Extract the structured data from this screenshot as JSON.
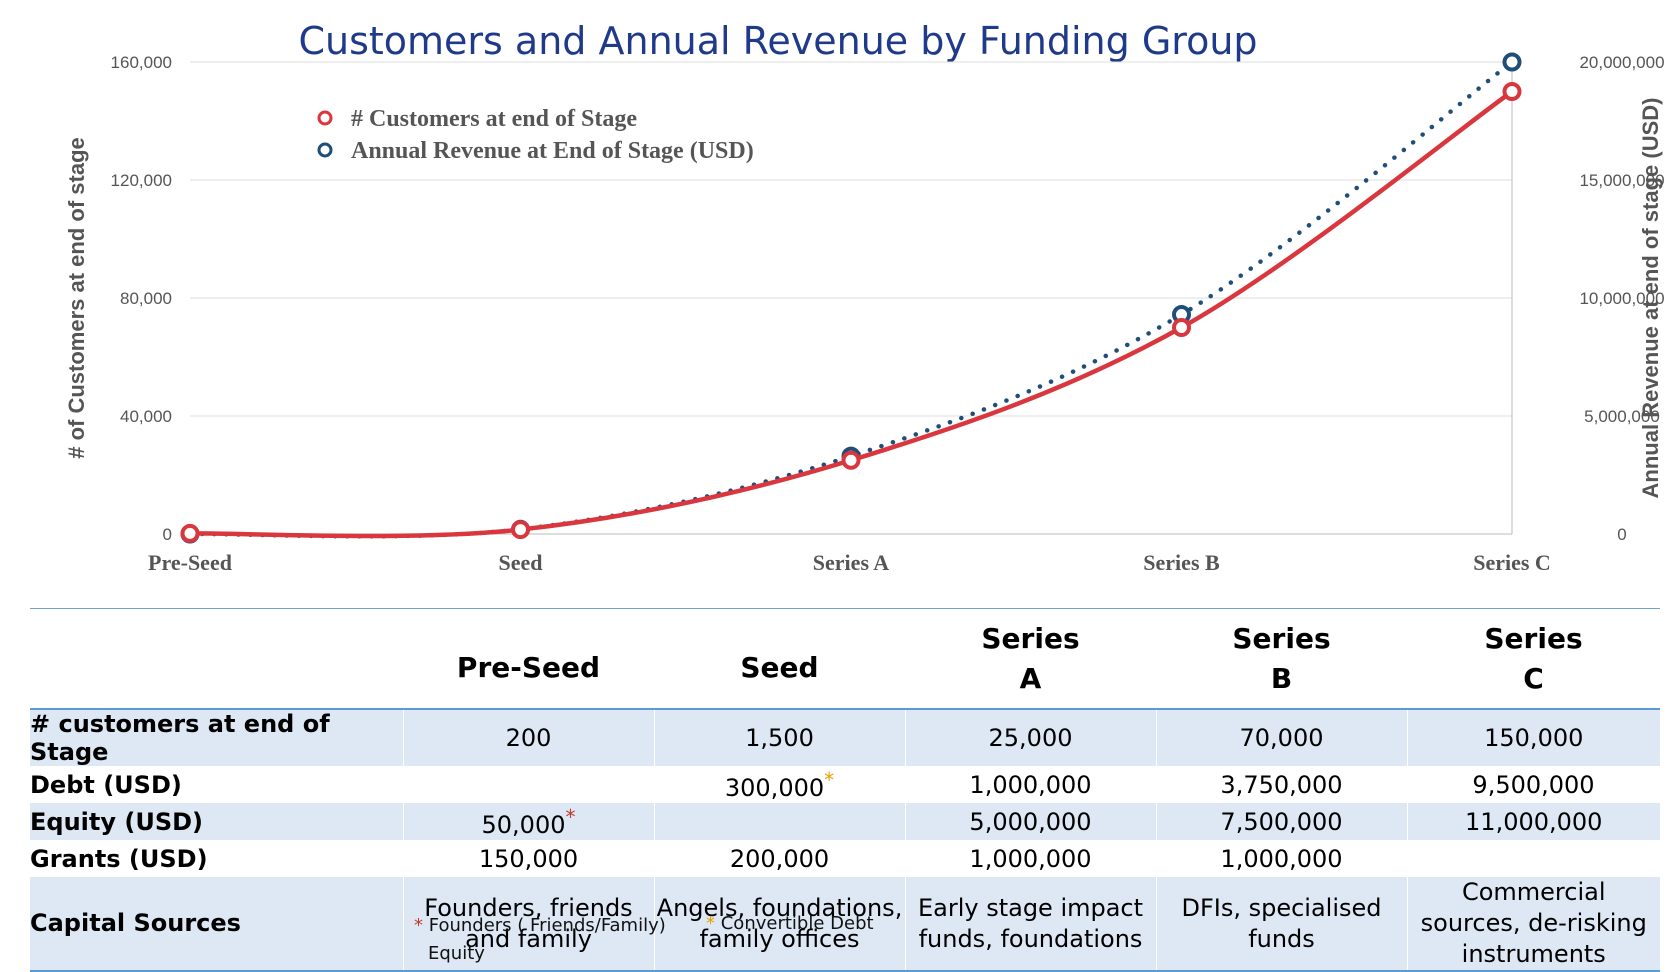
{
  "chart_data": {
    "type": "line",
    "title": "Customers and Annual Revenue by Funding Group",
    "categories": [
      "Pre-Seed",
      "Seed",
      "Series A",
      "Series B",
      "Series C"
    ],
    "ylabel": "# of Customers at end of stage",
    "y2label": "Annual Revenue at end of stage (USD)",
    "ylim": [
      0,
      160000
    ],
    "y2lim": [
      0,
      20000000
    ],
    "yticks": [
      "0",
      "40,000",
      "80,000",
      "120,000",
      "160,000"
    ],
    "y2ticks": [
      "0",
      "5,000,000",
      "10,000,000",
      "15,000,000",
      "20,000,000"
    ],
    "grid": true,
    "legend_position": "top-left",
    "series": [
      {
        "name": "# Customers at end of Stage",
        "axis": "left",
        "values": [
          200,
          1500,
          25000,
          70000,
          150000
        ],
        "color": "#d9363e",
        "style": "solid"
      },
      {
        "name": "Annual Revenue at End of Stage (USD)",
        "axis": "right",
        "values": [
          0,
          200000,
          3300000,
          9300000,
          20000000
        ],
        "color": "#1f4e79",
        "style": "dotted"
      }
    ]
  },
  "table": {
    "columns": [
      {
        "lines": [
          "Pre-Seed"
        ]
      },
      {
        "lines": [
          "Seed"
        ]
      },
      {
        "lines": [
          "Series",
          "A"
        ]
      },
      {
        "lines": [
          "Series",
          "B"
        ]
      },
      {
        "lines": [
          "Series",
          "C"
        ]
      }
    ],
    "rows": [
      {
        "label": "# customers at end of Stage",
        "cells": [
          "200",
          "1,500",
          "25,000",
          "70,000",
          "150,000"
        ]
      },
      {
        "label": "Debt (USD)",
        "cells": [
          "",
          "300,000",
          "1,000,000",
          "3,750,000",
          "9,500,000"
        ]
      },
      {
        "label": "Equity (USD)",
        "cells": [
          "50,000",
          "",
          "5,000,000",
          "7,500,000",
          "11,000,000"
        ]
      },
      {
        "label": "Grants (USD)",
        "cells": [
          "150,000",
          "200,000",
          "1,000,000",
          "1,000,000",
          ""
        ]
      },
      {
        "label": "Capital Sources",
        "cells": [
          "Founders, friends and family",
          "Angels, foundations, family offices",
          "Early stage impact funds, foundations",
          "DFIs, specialised funds",
          "Commercial sources, de-risking instruments"
        ]
      }
    ],
    "marker_red": "*",
    "marker_yellow": "*"
  },
  "footnotes": {
    "red_marker": "*",
    "red_line1": "Founders ( Friends/Family)",
    "red_line2": "Equity",
    "yellow_marker": "*",
    "yellow_text": "Convertible Debt"
  },
  "colors": {
    "customers": "#d9363e",
    "revenue": "#1f4e79",
    "title": "#1f3a8a",
    "table_shade": "#dde8f4",
    "table_rule": "#5b9bd5"
  }
}
